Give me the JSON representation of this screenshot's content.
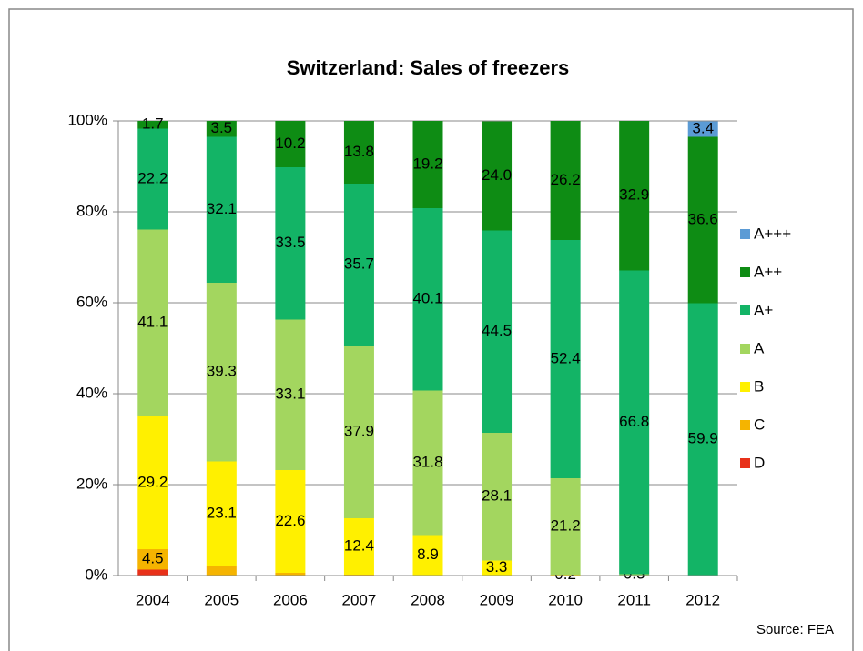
{
  "chart_data": {
    "type": "bar",
    "stacked": true,
    "title": "Switzerland: Sales of freezers",
    "source": "Source: FEA",
    "categories": [
      "2004",
      "2005",
      "2006",
      "2007",
      "2008",
      "2009",
      "2010",
      "2011",
      "2012"
    ],
    "ylim": [
      0,
      100
    ],
    "yticks": [
      {
        "value": 0,
        "label": "0%"
      },
      {
        "value": 20,
        "label": "20%"
      },
      {
        "value": 40,
        "label": "40%"
      },
      {
        "value": 60,
        "label": "60%"
      },
      {
        "value": 80,
        "label": "80%"
      },
      {
        "value": 100,
        "label": "100%"
      }
    ],
    "grid": true,
    "legend": "right",
    "series": [
      {
        "name": "D",
        "color": "#e8311a",
        "values": [
          1.3,
          null,
          null,
          null,
          null,
          null,
          null,
          null,
          null
        ],
        "value_labels": [
          null,
          null,
          null,
          null,
          null,
          null,
          null,
          null,
          null
        ]
      },
      {
        "name": "C",
        "color": "#f5b400",
        "values": [
          4.5,
          2.0,
          0.6,
          0.2,
          null,
          null,
          null,
          null,
          null
        ],
        "value_labels": [
          "4.5",
          null,
          null,
          null,
          null,
          null,
          null,
          null,
          null
        ]
      },
      {
        "name": "B",
        "color": "#fff000",
        "values": [
          29.2,
          23.1,
          22.6,
          12.4,
          8.9,
          3.3,
          0.2,
          null,
          null
        ],
        "value_labels": [
          "29.2",
          "23.1",
          "22.6",
          "12.4",
          "8.9",
          "3.3",
          "0.2",
          null,
          null
        ]
      },
      {
        "name": "A",
        "color": "#a3d65f",
        "values": [
          41.1,
          39.3,
          33.1,
          37.9,
          31.8,
          28.1,
          21.2,
          0.3,
          null
        ],
        "value_labels": [
          "41.1",
          "39.3",
          "33.1",
          "37.9",
          "31.8",
          "28.1",
          "21.2",
          "0.3",
          null
        ]
      },
      {
        "name": "A+",
        "color": "#13b466",
        "values": [
          22.2,
          32.1,
          33.5,
          35.7,
          40.1,
          44.5,
          52.4,
          66.8,
          59.9
        ],
        "value_labels": [
          "22.2",
          "32.1",
          "33.5",
          "35.7",
          "40.1",
          "44.5",
          "52.4",
          "66.8",
          "59.9"
        ]
      },
      {
        "name": "A++",
        "color": "#0e8c14",
        "values": [
          1.7,
          3.5,
          10.2,
          13.8,
          19.2,
          24.0,
          26.2,
          32.9,
          36.6
        ],
        "value_labels": [
          "1.7",
          "3.5",
          "10.2",
          "13.8",
          "19.2",
          "24.0",
          "26.2",
          "32.9",
          "36.6"
        ]
      },
      {
        "name": "A+++",
        "color": "#5b9bd5",
        "values": [
          null,
          null,
          null,
          null,
          null,
          null,
          null,
          null,
          3.4
        ],
        "value_labels": [
          null,
          null,
          null,
          null,
          null,
          null,
          null,
          null,
          "3.4"
        ]
      }
    ]
  }
}
